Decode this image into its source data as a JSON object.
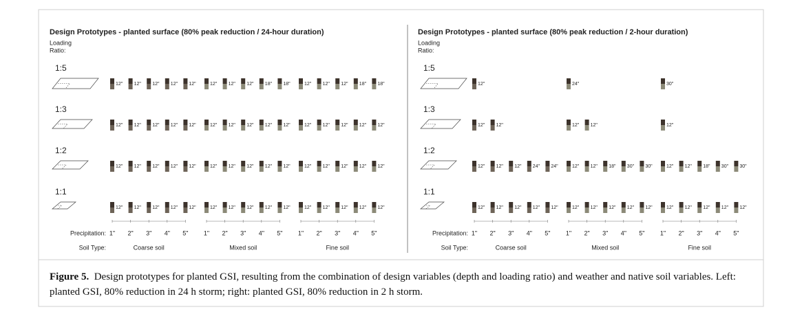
{
  "panels": [
    {
      "title": "Design Prototypes - planted surface (80% peak reduction / 24-hour duration)",
      "loading_ratio_label": [
        "Loading",
        "Ratio:"
      ],
      "rows": [
        {
          "ratio": "1:5",
          "depths": [
            "12\"",
            "12\"",
            "12\"",
            "12\"",
            "12\"",
            "12\"",
            "12\"",
            "12\"",
            "18\"",
            "18\"",
            "12\"",
            "12\"",
            "12\"",
            "18\"",
            "18\""
          ]
        },
        {
          "ratio": "1:3",
          "depths": [
            "12\"",
            "12\"",
            "12\"",
            "12\"",
            "12\"",
            "12\"",
            "12\"",
            "12\"",
            "12\"",
            "12\"",
            "12\"",
            "12\"",
            "12\"",
            "12\"",
            "12\""
          ]
        },
        {
          "ratio": "1:2",
          "depths": [
            "12\"",
            "12\"",
            "12\"",
            "12\"",
            "12\"",
            "12\"",
            "12\"",
            "12\"",
            "12\"",
            "12\"",
            "12\"",
            "12\"",
            "12\"",
            "12\"",
            "12\""
          ]
        },
        {
          "ratio": "1:1",
          "depths": [
            "12\"",
            "12\"",
            "12\"",
            "12\"",
            "12\"",
            "12\"",
            "12\"",
            "12\"",
            "12\"",
            "12\"",
            "12\"",
            "12\"",
            "12\"",
            "12\"",
            "12\""
          ]
        }
      ],
      "precipitation_label": "Precipitation:",
      "precipitation": [
        "1\"",
        "2\"",
        "3\"",
        "4\"",
        "5\"",
        "1\"",
        "2\"",
        "3\"",
        "4\"",
        "5\"",
        "1\"",
        "2\"",
        "3\"",
        "4\"",
        "5\""
      ],
      "soil_type_label": "Soil Type:",
      "soils": [
        "Coarse soil",
        "Mixed soil",
        "Fine soil"
      ]
    },
    {
      "title": "Design Prototypes - planted surface (80% peak reduction / 2-hour duration)",
      "loading_ratio_label": [
        "Loading",
        "Ratio:"
      ],
      "rows": [
        {
          "ratio": "1:5",
          "depths": [
            "12\"",
            null,
            null,
            null,
            null,
            "24\"",
            null,
            null,
            null,
            null,
            "30\"",
            null,
            null,
            null,
            null
          ]
        },
        {
          "ratio": "1:3",
          "depths": [
            "12\"",
            "12\"",
            null,
            null,
            null,
            "12\"",
            "12\"",
            null,
            null,
            null,
            "12\"",
            null,
            null,
            null,
            null
          ]
        },
        {
          "ratio": "1:2",
          "depths": [
            "12\"",
            "12\"",
            "12\"",
            "24\"",
            "24\"",
            "12\"",
            "12\"",
            "18\"",
            "30\"",
            "30\"",
            "12\"",
            "12\"",
            "18\"",
            "30\"",
            "30\""
          ]
        },
        {
          "ratio": "1:1",
          "depths": [
            "12\"",
            "12\"",
            "12\"",
            "12\"",
            "12\"",
            "12\"",
            "12\"",
            "12\"",
            "12\"",
            "12\"",
            "12\"",
            "12\"",
            "12\"",
            "12\"",
            "12\""
          ]
        }
      ],
      "precipitation_label": "Precipitation:",
      "precipitation": [
        "1\"",
        "2\"",
        "3\"",
        "4\"",
        "5\"",
        "1\"",
        "2\"",
        "3\"",
        "4\"",
        "5\"",
        "1\"",
        "2\"",
        "3\"",
        "4\"",
        "5\""
      ],
      "soil_type_label": "Soil Type:",
      "soils": [
        "Coarse soil",
        "Mixed soil",
        "Fine soil"
      ]
    }
  ],
  "caption": {
    "label": "Figure 5.",
    "text": "Design prototypes for planted GSI, resulting from the combination of design variables (depth and loading ratio) and weather and native soil variables. Left: planted GSI, 80% reduction in 24 h storm; right: planted GSI, 80% reduction in 2 h storm."
  }
}
